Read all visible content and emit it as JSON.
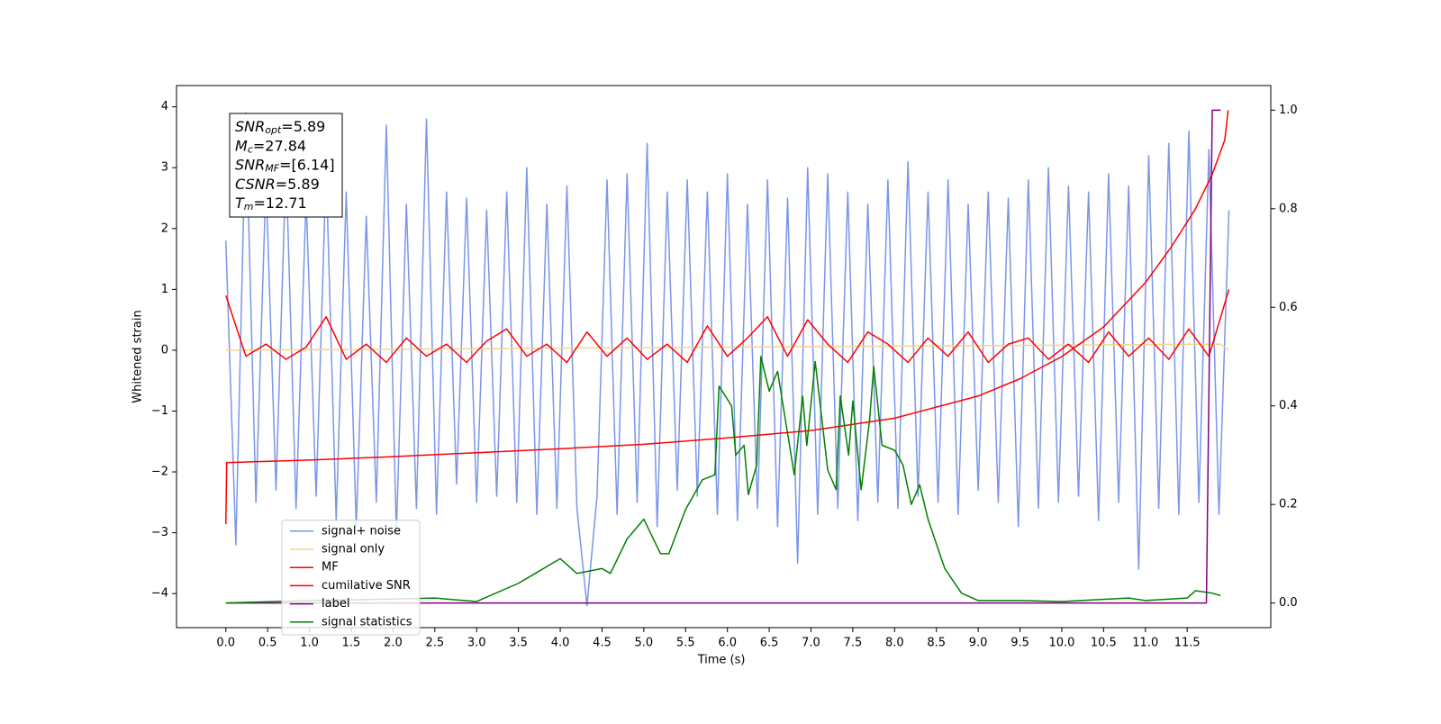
{
  "chart_data": {
    "type": "line",
    "xlabel": "Time (s)",
    "ylabel": "Whitened strain",
    "xlim": [
      -0.59,
      12.5
    ],
    "ylim": [
      -4.56,
      4.35
    ],
    "y2lim": [
      -0.05,
      1.05
    ],
    "xticks": [
      {
        "value": 0,
        "label": "0.0"
      },
      0.5,
      {
        "value": 1,
        "label": "1.0"
      },
      1.5,
      {
        "value": 2,
        "label": "2.0"
      },
      2.5,
      {
        "value": 3,
        "label": "3.0"
      },
      3.5,
      {
        "value": 4,
        "label": "4.0"
      },
      4.5,
      {
        "value": 5,
        "label": "5.0"
      },
      5.5,
      {
        "value": 6,
        "label": "6.0"
      },
      6.5,
      {
        "value": 7,
        "label": "7.0"
      },
      7.5,
      {
        "value": 8,
        "label": "8.0"
      },
      8.5,
      {
        "value": 9,
        "label": "9.0"
      },
      9.5,
      {
        "value": 10,
        "label": "10.0"
      },
      10.5,
      {
        "value": 11,
        "label": "11.0"
      },
      11.5
    ],
    "yticks": [
      {
        "value": -4,
        "label": "−4"
      },
      {
        "value": -3,
        "label": "−3"
      },
      {
        "value": -2,
        "label": "−2"
      },
      {
        "value": -1,
        "label": "−1"
      },
      0,
      1,
      2,
      3,
      4
    ],
    "y2ticks": [
      {
        "value": 0,
        "label": "0.0"
      },
      0.2,
      0.4,
      0.6,
      0.8,
      {
        "value": 1,
        "label": "1.0"
      }
    ],
    "grid": false,
    "legend": "lower left",
    "annotations": [
      {
        "symbol": "SNR",
        "sub": "opt",
        "text": "=5.89"
      },
      {
        "symbol": "M",
        "sub": "c",
        "text": "=27.84"
      },
      {
        "symbol": "SNR",
        "sub": "MF",
        "text": "=[6.14]"
      },
      {
        "symbol": "CSNR",
        "text": "=5.89"
      },
      {
        "symbol": "T",
        "sub": "m",
        "text": "=12.71"
      }
    ],
    "series": [
      {
        "name": "signal+ noise",
        "color": "#7b96e8",
        "x": [
          0.0,
          0.12,
          0.24,
          0.36,
          0.48,
          0.6,
          0.72,
          0.84,
          0.96,
          1.08,
          1.2,
          1.32,
          1.44,
          1.56,
          1.68,
          1.8,
          1.92,
          2.04,
          2.16,
          2.28,
          2.4,
          2.52,
          2.64,
          2.76,
          2.88,
          3.0,
          3.12,
          3.24,
          3.36,
          3.48,
          3.6,
          3.72,
          3.84,
          3.96,
          4.08,
          4.2,
          4.32,
          4.44,
          4.56,
          4.68,
          4.8,
          4.92,
          5.04,
          5.16,
          5.28,
          5.4,
          5.52,
          5.64,
          5.76,
          5.88,
          6.0,
          6.12,
          6.24,
          6.36,
          6.48,
          6.6,
          6.72,
          6.84,
          6.96,
          7.08,
          7.2,
          7.32,
          7.44,
          7.56,
          7.68,
          7.8,
          7.92,
          8.04,
          8.16,
          8.28,
          8.4,
          8.52,
          8.64,
          8.76,
          8.88,
          9.0,
          9.12,
          9.24,
          9.36,
          9.48,
          9.6,
          9.72,
          9.84,
          9.96,
          10.08,
          10.2,
          10.32,
          10.44,
          10.56,
          10.68,
          10.8,
          10.92,
          11.04,
          11.16,
          11.28,
          11.4,
          11.52,
          11.64,
          11.76,
          11.88,
          12.0
        ],
        "values": [
          1.8,
          -3.2,
          3.9,
          -2.5,
          2.8,
          -2.3,
          3.1,
          -2.6,
          2.5,
          -2.4,
          3.0,
          -2.8,
          2.6,
          -2.9,
          2.2,
          -2.5,
          3.7,
          -3.0,
          2.4,
          -2.6,
          3.8,
          -2.7,
          2.6,
          -2.2,
          2.5,
          -2.5,
          2.3,
          -2.4,
          2.6,
          -2.5,
          3.0,
          -2.7,
          2.4,
          -2.6,
          2.7,
          -2.6,
          -4.2,
          -2.4,
          2.8,
          -2.7,
          2.9,
          -2.5,
          3.4,
          -2.9,
          2.6,
          -2.3,
          2.8,
          -2.4,
          2.6,
          -2.7,
          2.9,
          -2.8,
          2.4,
          -2.6,
          2.8,
          -2.9,
          2.5,
          -3.5,
          3.0,
          -2.7,
          2.9,
          -2.6,
          2.6,
          -2.8,
          2.4,
          -2.5,
          2.8,
          -2.6,
          3.1,
          -2.4,
          2.6,
          -2.5,
          2.8,
          -2.7,
          2.4,
          -2.3,
          2.6,
          -2.5,
          2.5,
          -2.9,
          2.8,
          -2.6,
          3.0,
          -2.5,
          2.7,
          -2.4,
          2.6,
          -2.8,
          2.9,
          -2.5,
          2.7,
          -3.6,
          3.2,
          -2.6,
          3.4,
          -2.7,
          3.6,
          -2.5,
          3.3,
          -2.7,
          2.3
        ]
      },
      {
        "name": "signal only",
        "color": "#f7d48a",
        "x": [
          0.0,
          11.9,
          12.0
        ],
        "values": [
          0.0,
          0.1,
          0.0
        ]
      },
      {
        "name": "MF",
        "color": "#ff0000",
        "x": [
          0.0,
          0.24,
          0.48,
          0.72,
          0.96,
          1.2,
          1.44,
          1.68,
          1.92,
          2.16,
          2.4,
          2.64,
          2.88,
          3.12,
          3.36,
          3.6,
          3.84,
          4.08,
          4.32,
          4.56,
          4.8,
          5.04,
          5.28,
          5.52,
          5.76,
          6.0,
          6.24,
          6.48,
          6.72,
          6.96,
          7.2,
          7.44,
          7.68,
          7.92,
          8.16,
          8.4,
          8.64,
          8.88,
          9.12,
          9.36,
          9.6,
          9.84,
          10.08,
          10.32,
          10.56,
          10.8,
          11.04,
          11.28,
          11.52,
          11.76,
          12.0
        ],
        "values": [
          0.9,
          -0.1,
          0.1,
          -0.15,
          0.05,
          0.55,
          -0.15,
          0.1,
          -0.2,
          0.2,
          -0.1,
          0.1,
          -0.2,
          0.15,
          0.35,
          -0.1,
          0.1,
          -0.2,
          0.3,
          -0.1,
          0.2,
          -0.15,
          0.1,
          -0.2,
          0.4,
          -0.1,
          0.2,
          0.55,
          -0.1,
          0.5,
          0.1,
          -0.2,
          0.3,
          0.1,
          -0.2,
          0.2,
          -0.1,
          0.3,
          -0.2,
          0.1,
          0.2,
          -0.15,
          0.1,
          -0.2,
          0.3,
          -0.1,
          0.2,
          -0.15,
          0.35,
          -0.1,
          1.0
        ]
      },
      {
        "name": "cumilative SNR",
        "color": "#ff0000",
        "axis": "y2",
        "x": [
          0,
          0.01,
          1,
          2,
          3,
          4,
          5,
          6,
          7,
          8,
          9,
          9.5,
          10,
          10.5,
          11,
          11.3,
          11.6,
          11.8,
          11.95,
          11.99
        ],
        "values": [
          0.16,
          0.285,
          0.29,
          0.297,
          0.305,
          0.313,
          0.322,
          0.335,
          0.35,
          0.375,
          0.42,
          0.455,
          0.5,
          0.56,
          0.65,
          0.72,
          0.8,
          0.87,
          0.94,
          1.0
        ]
      },
      {
        "name": "label",
        "color": "#800080",
        "axis": "y2",
        "x": [
          0,
          11.73,
          11.8,
          11.9
        ],
        "values": [
          0,
          0,
          1,
          1
        ]
      },
      {
        "name": "signal statistics",
        "color": "#008000",
        "axis": "y2",
        "x": [
          0,
          1,
          2,
          2.5,
          3,
          3.5,
          3.7,
          4,
          4.2,
          4.5,
          4.6,
          4.8,
          5.0,
          5.2,
          5.3,
          5.5,
          5.7,
          5.85,
          5.9,
          6.05,
          6.1,
          6.2,
          6.25,
          6.35,
          6.4,
          6.5,
          6.6,
          6.8,
          6.9,
          6.95,
          7.05,
          7.2,
          7.3,
          7.35,
          7.45,
          7.5,
          7.6,
          7.7,
          7.75,
          7.85,
          8.0,
          8.1,
          8.2,
          8.3,
          8.4,
          8.6,
          8.8,
          9.0,
          9.5,
          10,
          10.8,
          11,
          11.5,
          11.6,
          11.8,
          11.9
        ],
        "values": [
          0,
          0.005,
          0.008,
          0.01,
          0.003,
          0.04,
          0.06,
          0.09,
          0.06,
          0.07,
          0.06,
          0.13,
          0.17,
          0.1,
          0.1,
          0.19,
          0.25,
          0.26,
          0.44,
          0.4,
          0.3,
          0.32,
          0.22,
          0.28,
          0.5,
          0.43,
          0.47,
          0.26,
          0.42,
          0.32,
          0.49,
          0.27,
          0.23,
          0.42,
          0.3,
          0.41,
          0.23,
          0.37,
          0.48,
          0.32,
          0.31,
          0.28,
          0.2,
          0.24,
          0.17,
          0.07,
          0.02,
          0.005,
          0.005,
          0.003,
          0.01,
          0.005,
          0.01,
          0.025,
          0.02,
          0.015
        ]
      }
    ]
  }
}
